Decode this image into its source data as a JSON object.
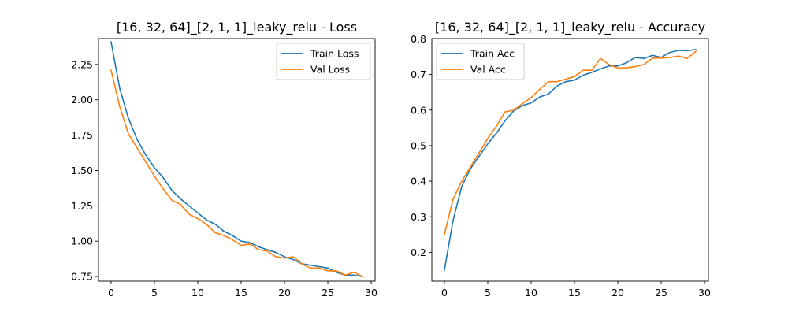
{
  "chart_data": [
    {
      "type": "line",
      "title": "[16, 32, 64]_[2, 1, 1]_leaky_relu - Loss",
      "xlabel": "",
      "ylabel": "",
      "xlim": [
        -1.45,
        30.45
      ],
      "ylim": [
        0.717,
        2.433
      ],
      "xticks": [
        0,
        5,
        10,
        15,
        20,
        25,
        30
      ],
      "yticks": [
        0.75,
        1.0,
        1.25,
        1.5,
        1.75,
        2.0,
        2.25
      ],
      "ytick_labels": [
        "0.75",
        "1.00",
        "1.25",
        "1.50",
        "1.75",
        "2.00",
        "2.25"
      ],
      "grid": false,
      "legend": "top-right",
      "x": [
        0,
        1,
        2,
        3,
        4,
        5,
        6,
        7,
        8,
        9,
        10,
        11,
        12,
        13,
        14,
        15,
        16,
        17,
        18,
        19,
        20,
        21,
        22,
        23,
        24,
        25,
        26,
        27,
        28,
        29
      ],
      "series": [
        {
          "name": "Train Loss",
          "color": "#1f77b4",
          "values": [
            2.41,
            2.08,
            1.87,
            1.72,
            1.61,
            1.52,
            1.45,
            1.36,
            1.3,
            1.25,
            1.2,
            1.15,
            1.12,
            1.07,
            1.04,
            1.0,
            0.99,
            0.96,
            0.94,
            0.92,
            0.89,
            0.87,
            0.84,
            0.83,
            0.82,
            0.81,
            0.78,
            0.76,
            0.76,
            0.75
          ]
        },
        {
          "name": "Val Loss",
          "color": "#ff7f0e",
          "values": [
            2.21,
            1.95,
            1.76,
            1.66,
            1.56,
            1.46,
            1.37,
            1.29,
            1.26,
            1.19,
            1.16,
            1.12,
            1.06,
            1.04,
            1.01,
            0.97,
            0.98,
            0.94,
            0.93,
            0.89,
            0.88,
            0.89,
            0.84,
            0.81,
            0.81,
            0.79,
            0.79,
            0.76,
            0.78,
            0.75
          ]
        }
      ]
    },
    {
      "type": "line",
      "title": "[16, 32, 64]_[2, 1, 1]_leaky_relu - Accuracy",
      "xlabel": "",
      "ylabel": "",
      "xlim": [
        -1.45,
        30.45
      ],
      "ylim": [
        0.119,
        0.801
      ],
      "xticks": [
        0,
        5,
        10,
        15,
        20,
        25,
        30
      ],
      "yticks": [
        0.2,
        0.3,
        0.4,
        0.5,
        0.6,
        0.7,
        0.8
      ],
      "ytick_labels": [
        "0.2",
        "0.3",
        "0.4",
        "0.5",
        "0.6",
        "0.7",
        "0.8"
      ],
      "grid": false,
      "legend": "top-left",
      "x": [
        0,
        1,
        2,
        3,
        4,
        5,
        6,
        7,
        8,
        9,
        10,
        11,
        12,
        13,
        14,
        15,
        16,
        17,
        18,
        19,
        20,
        21,
        22,
        23,
        24,
        25,
        26,
        27,
        28,
        29
      ],
      "series": [
        {
          "name": "Train Acc",
          "color": "#1f77b4",
          "values": [
            0.15,
            0.29,
            0.385,
            0.435,
            0.47,
            0.505,
            0.535,
            0.57,
            0.598,
            0.613,
            0.62,
            0.637,
            0.645,
            0.668,
            0.68,
            0.684,
            0.698,
            0.706,
            0.716,
            0.724,
            0.724,
            0.733,
            0.748,
            0.745,
            0.754,
            0.748,
            0.762,
            0.768,
            0.767,
            0.77
          ]
        },
        {
          "name": "Val Acc",
          "color": "#ff7f0e",
          "values": [
            0.25,
            0.35,
            0.4,
            0.44,
            0.48,
            0.52,
            0.555,
            0.595,
            0.6,
            0.618,
            0.635,
            0.658,
            0.68,
            0.68,
            0.687,
            0.694,
            0.712,
            0.712,
            0.745,
            0.728,
            0.718,
            0.719,
            0.722,
            0.728,
            0.746,
            0.746,
            0.748,
            0.752,
            0.745,
            0.765
          ]
        }
      ]
    }
  ]
}
